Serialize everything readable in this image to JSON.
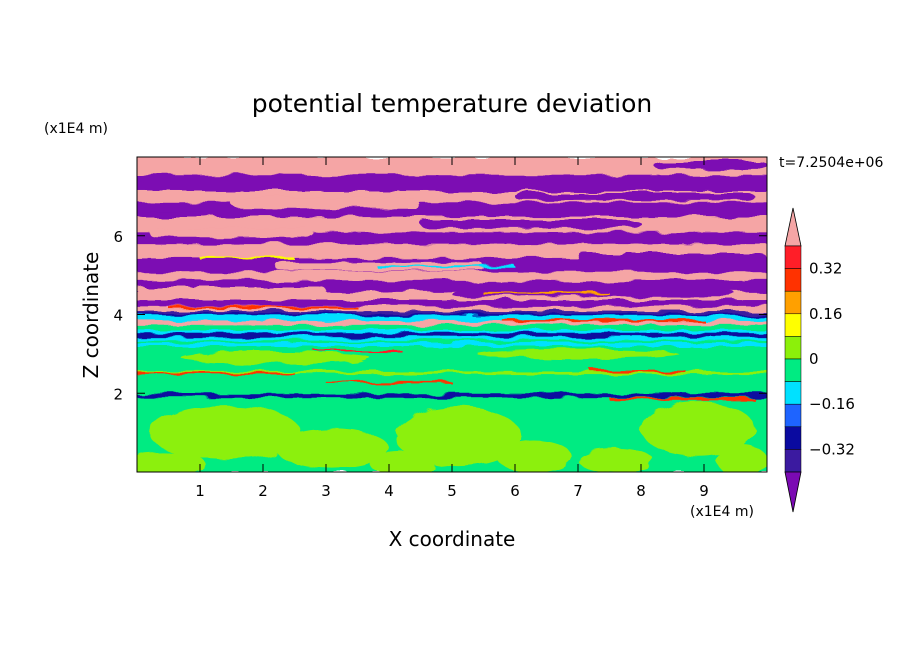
{
  "chart_data": {
    "type": "heatmap",
    "title": "potential temperature deviation",
    "xlabel": "X coordinate",
    "ylabel": "Z coordinate",
    "x_unit_label": "(x1E4 m)",
    "y_unit_label": "(x1E4 m)",
    "time_label": "t=7.2504e+06",
    "xlim": [
      0,
      10
    ],
    "ylim": [
      0,
      8
    ],
    "x_ticks": [
      "1",
      "2",
      "3",
      "4",
      "5",
      "6",
      "7",
      "8",
      "9"
    ],
    "y_ticks": [
      "2",
      "4",
      "6"
    ],
    "colorbar": {
      "tick_labels": [
        "0.32",
        "0.16",
        "0",
        "−0.16",
        "−0.32"
      ],
      "levels": [
        -0.4,
        -0.32,
        -0.24,
        -0.16,
        -0.08,
        0,
        0.08,
        0.16,
        0.24,
        0.32,
        0.4
      ],
      "colors": [
        "#7b0ab3",
        "#3b1aa0",
        "#0a0aa0",
        "#1e64ff",
        "#00e1ff",
        "#00eb82",
        "#8cf00a",
        "#ffff00",
        "#ffa000",
        "#ff3200",
        "#ff1e28",
        "#f5a5a5"
      ],
      "extend": "both"
    },
    "regions": [
      {
        "zmin": 0.0,
        "zmax": 1.9,
        "dominant": "0 to 0.08 (green)",
        "secondary": "0.08 to 0.16 (yellow-green) patches"
      },
      {
        "zmin": 1.9,
        "zmax": 2.0,
        "dominant": "-0.32 to -0.24 (dark blue) line"
      },
      {
        "zmin": 2.0,
        "zmax": 3.5,
        "dominant": "0 to 0.08 (green)",
        "secondary": "thin red / pink filaments"
      },
      {
        "zmin": 3.2,
        "zmax": 3.5,
        "dominant": "-0.08 to 0 (cyan) bands"
      },
      {
        "zmin": 3.5,
        "zmax": 4.4,
        "dominant": "alternating bands, -0.32 (dark blue) to 0.4 (pink)"
      },
      {
        "zmin": 4.4,
        "zmax": 8.0,
        "dominant": "alternating > 0.4 (pink) and < -0.4 (purple) layers"
      }
    ]
  }
}
